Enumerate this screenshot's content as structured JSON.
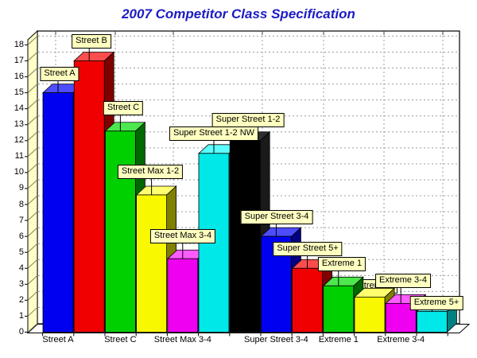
{
  "title": "2007 Competitor Class Specification",
  "colors": {
    "title": "#1C1CC4",
    "callout_bg": "#FFFFC0",
    "wall_bg": "#FFFFC8",
    "plot_bg": "#FFFFFF",
    "grid": "#9C9C9C",
    "axis_text": "#000000"
  },
  "chart_data": {
    "type": "bar",
    "title": "2007 Competitor Class Specification",
    "style": "3d-column with callout labels",
    "categories": [
      "Street A",
      "Street B",
      "Street C",
      "Street Max 1-2",
      "Street Max 3-4",
      "Super Street 1-2 NW",
      "Super Street 1-2",
      "Super Street 3-4",
      "Super Street 5+",
      "Extreme 1",
      "Extreme 2",
      "Extreme 3-4",
      "Extreme 5+"
    ],
    "values": [
      15,
      17,
      12.6,
      8.6,
      4.6,
      11.2,
      12,
      6,
      4,
      2.9,
      2.2,
      1.8,
      1.3
    ],
    "bar_colors": [
      {
        "front": "#0000F0",
        "side": "#000080",
        "top": "#4D4DFF"
      },
      {
        "front": "#F00000",
        "side": "#800000",
        "top": "#FF4D4D"
      },
      {
        "front": "#00D000",
        "side": "#006800",
        "top": "#4DE84D"
      },
      {
        "front": "#F8F800",
        "side": "#808000",
        "top": "#FFFF70"
      },
      {
        "front": "#F000F0",
        "side": "#800080",
        "top": "#FF5CFF"
      },
      {
        "front": "#00E8E8",
        "side": "#008080",
        "top": "#5CFFFF"
      },
      {
        "front": "#000000",
        "side": "#1A1A1A",
        "top": "#2E2E2E"
      },
      {
        "front": "#0000F0",
        "side": "#000080",
        "top": "#4D4DFF"
      },
      {
        "front": "#F00000",
        "side": "#800000",
        "top": "#FF4D4D"
      },
      {
        "front": "#00D000",
        "side": "#006800",
        "top": "#4DE84D"
      },
      {
        "front": "#F8F800",
        "side": "#808000",
        "top": "#FFFF70"
      },
      {
        "front": "#F000F0",
        "side": "#800080",
        "top": "#FF5CFF"
      },
      {
        "front": "#00E8E8",
        "side": "#008080",
        "top": "#5CFFFF"
      }
    ],
    "xlabel": "",
    "ylabel": "",
    "ylim": [
      0,
      18
    ],
    "y_ticks": [
      0,
      1,
      2,
      3,
      4,
      5,
      6,
      7,
      8,
      9,
      10,
      11,
      12,
      13,
      14,
      15,
      16,
      17,
      18
    ],
    "x_axis_shown_labels": [
      "Street A",
      "Street C",
      "Street Max 3-4",
      "Super Street 3-4",
      "Extreme 1",
      "Extreme 3-4"
    ],
    "x_axis_label_indices": [
      0,
      2,
      4,
      7,
      9,
      11
    ],
    "grid": "dashed gray, horizontal every 1 unit plus sparse vertical lines",
    "legend": "none; each bar has a yellow callout label pointing to its top",
    "hidden_label_note": "the 'Extreme 2' callout is partially hidden behind its own bar"
  }
}
